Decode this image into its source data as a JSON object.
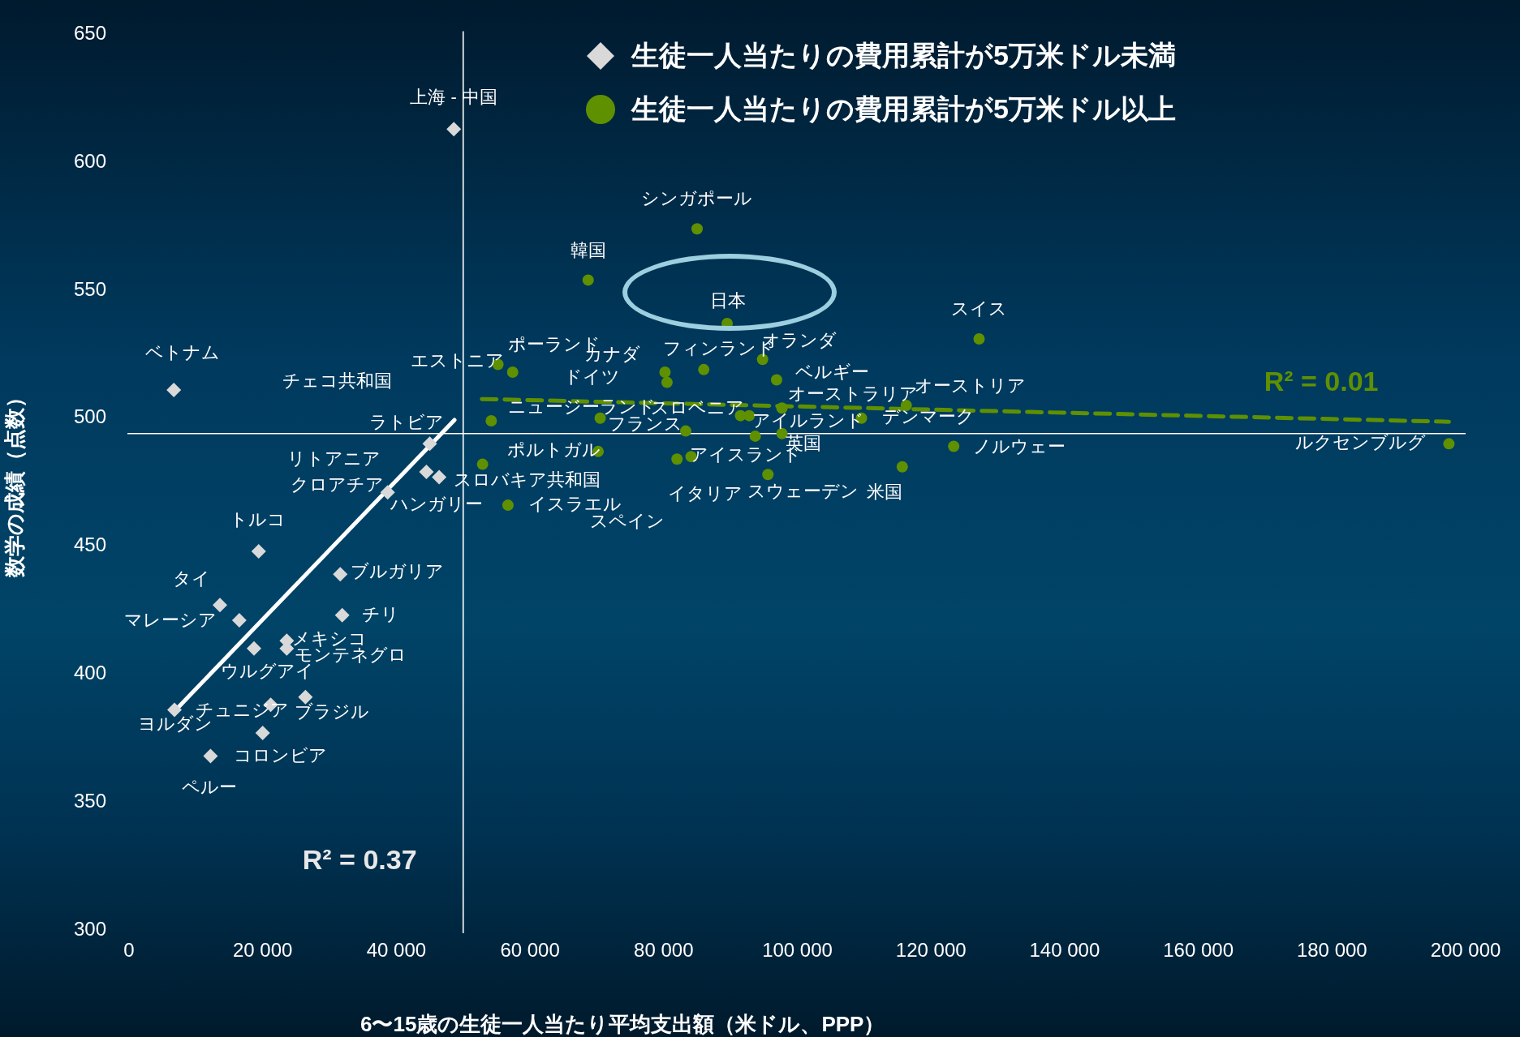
{
  "chart_data": {
    "type": "scatter",
    "xlabel": "6〜15歳の生徒一人当たり平均支出額（米ドル、PPP）",
    "ylabel": "数学の成績（点数）",
    "xlim": [
      0,
      200000
    ],
    "ylim": [
      300,
      650
    ],
    "xticks": [
      0,
      {
        "value": 20000,
        "label": "20 000"
      },
      {
        "value": 40000,
        "label": "40 000"
      },
      {
        "value": 60000,
        "label": "60 000"
      },
      {
        "value": 80000,
        "label": "80 000"
      },
      {
        "value": 100000,
        "label": "100 000"
      },
      {
        "value": 120000,
        "label": "120 000"
      },
      {
        "value": 140000,
        "label": "140 000"
      },
      {
        "value": 160000,
        "label": "160 000"
      },
      {
        "value": 180000,
        "label": "180 000"
      },
      {
        "value": 200000,
        "label": "200 000"
      }
    ],
    "yticks": [
      300,
      350,
      400,
      450,
      500,
      550,
      600,
      650
    ],
    "grid": false,
    "legend": "top",
    "series": [
      {
        "name": "生徒一人当たりの費用累計が5万米ドル未満",
        "color": "#d9d9d9",
        "marker": "diamond",
        "x": [
          48600,
          6700,
          45000,
          44500,
          46400,
          38700,
          19400,
          31600,
          13600,
          16500,
          31900,
          23600,
          23600,
          18700,
          26400,
          21200,
          6800,
          20000,
          12200
        ],
        "values": [
          613,
          511,
          490,
          479,
          477,
          471,
          448,
          439,
          427,
          421,
          423,
          413,
          410,
          410,
          391,
          388,
          386,
          377,
          368
        ]
      },
      {
        "name": "生徒一人当たりの費用累計が5万米ドル以上",
        "color": "#5f9000",
        "marker": "circle",
        "x": [
          85000,
          68700,
          89500,
          127200,
          94800,
          55200,
          57400,
          86000,
          80200,
          80500,
          96900,
          97700,
          116300,
          91500,
          92800,
          70500,
          109600,
          54200,
          83300,
          97700,
          93700,
          70200,
          52900,
          56700,
          82000,
          84100,
          95600,
          115700,
          123400,
          197500
        ],
        "values": [
          574,
          554,
          537,
          531,
          523,
          521,
          518,
          519,
          518,
          514,
          515,
          504,
          505,
          501,
          501,
          500,
          500,
          499,
          495,
          494,
          493,
          487,
          482,
          466,
          484,
          485,
          478,
          481,
          489,
          490
        ]
      },
      {
        "type": "line",
        "color": "#ffffff",
        "marker": "none",
        "line_style": "solid",
        "x": [
          6800,
          48700
        ],
        "values": [
          385.5,
          499.3
        ]
      },
      {
        "type": "line",
        "color": "#5f9000",
        "marker": "none",
        "line_style": "dashed",
        "x": [
          52800,
          197500
        ],
        "values": [
          507.5,
          498.6
        ]
      }
    ],
    "ref_lines": [
      {
        "axis": "x",
        "value": 50000,
        "color": "#ffffff"
      },
      {
        "axis": "y",
        "value": 494,
        "color": "#ffffff"
      }
    ],
    "annotations": [
      {
        "text": "上海 - 中国",
        "x": 48600,
        "y": 613
      },
      {
        "text": "ベトナム",
        "x": 6700,
        "y": 511
      },
      {
        "text": "ラトビア",
        "x": 45000,
        "y": 490
      },
      {
        "text": "リトアニア",
        "x": 44500,
        "y": 479
      },
      {
        "text": "ハンガリー",
        "x": 46400,
        "y": 477
      },
      {
        "text": "クロアチア",
        "x": 38700,
        "y": 471
      },
      {
        "text": "トルコ",
        "x": 19400,
        "y": 448
      },
      {
        "text": "ブルガリア",
        "x": 31600,
        "y": 439
      },
      {
        "text": "タイ",
        "x": 13600,
        "y": 427
      },
      {
        "text": "マレーシア",
        "x": 16500,
        "y": 421
      },
      {
        "text": "チリ",
        "x": 31900,
        "y": 423
      },
      {
        "text": "メキシコ",
        "x": 23600,
        "y": 413
      },
      {
        "text": "モンテネグロ",
        "x": 23600,
        "y": 410
      },
      {
        "text": "ウルグアイ",
        "x": 18700,
        "y": 410
      },
      {
        "text": "ブラジル",
        "x": 26400,
        "y": 391
      },
      {
        "text": "チュニジア",
        "x": 21200,
        "y": 388
      },
      {
        "text": "ヨルダン",
        "x": 6800,
        "y": 386
      },
      {
        "text": "コロンビア",
        "x": 20000,
        "y": 377
      },
      {
        "text": "ペルー",
        "x": 12200,
        "y": 368
      },
      {
        "text": "シンガポール",
        "x": 85000,
        "y": 574
      },
      {
        "text": "韓国",
        "x": 68700,
        "y": 554
      },
      {
        "text": "日本",
        "x": 89500,
        "y": 537
      },
      {
        "text": "スイス",
        "x": 127200,
        "y": 531
      },
      {
        "text": "オランダ",
        "x": 94800,
        "y": 523
      },
      {
        "text": "エストニア",
        "x": 55200,
        "y": 521
      },
      {
        "text": "ポーランド",
        "x": 57400,
        "y": 518
      },
      {
        "text": "フィンランド",
        "x": 86000,
        "y": 519
      },
      {
        "text": "カナダ",
        "x": 80200,
        "y": 518
      },
      {
        "text": "ドイツ",
        "x": 80500,
        "y": 514
      },
      {
        "text": "ベルギー",
        "x": 96900,
        "y": 515
      },
      {
        "text": "オーストラリア",
        "x": 97700,
        "y": 504
      },
      {
        "text": "オーストリア",
        "x": 116300,
        "y": 505
      },
      {
        "text": "スロベニア",
        "x": 91500,
        "y": 501
      },
      {
        "text": "アイルランド",
        "x": 92800,
        "y": 501
      },
      {
        "text": "ニュージーランド",
        "x": 70500,
        "y": 500
      },
      {
        "text": "デンマーク",
        "x": 109600,
        "y": 500
      },
      "チェコ共和国",
      {
        "text": "フランス",
        "x": 83300,
        "y": 495
      },
      {
        "text": "英国",
        "x": 97700,
        "y": 494
      },
      {
        "text": "アイスランド",
        "x": 93700,
        "y": 493
      },
      {
        "text": "ポルトガル",
        "x": 70200,
        "y": 487
      },
      {
        "text": "スロバキア共和国",
        "x": 52900,
        "y": 482
      },
      {
        "text": "イスラエル",
        "x": 56700,
        "y": 466
      },
      {
        "text": "スペイン",
        "x": 82000,
        "y": 484
      },
      {
        "text": "イタリア",
        "x": 84100,
        "y": 485
      },
      {
        "text": "スウェーデン",
        "x": 95600,
        "y": 478
      },
      {
        "text": "米国",
        "x": 115700,
        "y": 481
      },
      {
        "text": "ノルウェー",
        "x": 123400,
        "y": 489
      },
      {
        "text": "ルクセンブルグ",
        "x": 197500,
        "y": 490
      },
      "R² = 0.37",
      "R² = 0.01"
    ]
  }
}
